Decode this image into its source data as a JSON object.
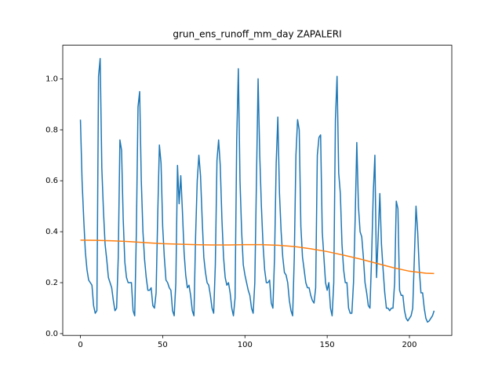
{
  "chart_data": {
    "type": "line",
    "title": "grun_ens_runoff_mm_day ZAPALERI",
    "x": [
      0,
      1,
      2,
      3,
      4,
      5,
      6,
      7,
      8,
      9,
      10,
      11,
      12,
      13,
      14,
      15,
      16,
      17,
      18,
      19,
      20,
      21,
      22,
      23,
      24,
      25,
      26,
      27,
      28,
      29,
      30,
      31,
      32,
      33,
      34,
      35,
      36,
      37,
      38,
      39,
      40,
      41,
      42,
      43,
      44,
      45,
      46,
      47,
      48,
      49,
      50,
      51,
      52,
      53,
      54,
      55,
      56,
      57,
      58,
      59,
      60,
      61,
      62,
      63,
      64,
      65,
      66,
      67,
      68,
      69,
      70,
      71,
      72,
      73,
      74,
      75,
      76,
      77,
      78,
      79,
      80,
      81,
      82,
      83,
      84,
      85,
      86,
      87,
      88,
      89,
      90,
      91,
      92,
      93,
      94,
      95,
      96,
      97,
      98,
      99,
      100,
      101,
      102,
      103,
      104,
      105,
      106,
      107,
      108,
      109,
      110,
      111,
      112,
      113,
      114,
      115,
      116,
      117,
      118,
      119,
      120,
      121,
      122,
      123,
      124,
      125,
      126,
      127,
      128,
      129,
      130,
      131,
      132,
      133,
      134,
      135,
      136,
      137,
      138,
      139,
      140,
      141,
      142,
      143,
      144,
      145,
      146,
      147,
      148,
      149,
      150,
      151,
      152,
      153,
      154,
      155,
      156,
      157,
      158,
      159,
      160,
      161,
      162,
      163,
      164,
      165,
      166,
      167,
      168,
      169,
      170,
      171,
      172,
      173,
      174,
      175,
      176,
      177,
      178,
      179,
      180,
      181,
      182,
      183,
      184,
      185,
      186,
      187,
      188,
      189,
      190,
      191,
      192,
      193,
      194,
      195,
      196,
      197,
      198,
      199,
      200,
      201,
      202,
      203,
      204,
      205,
      206,
      207,
      208,
      209,
      210,
      211,
      212,
      213,
      214,
      215
    ],
    "series": [
      {
        "color": "#1f77b4",
        "values": [
          0.84,
          0.6,
          0.45,
          0.32,
          0.25,
          0.21,
          0.2,
          0.19,
          0.11,
          0.08,
          0.09,
          1.01,
          1.08,
          0.65,
          0.48,
          0.35,
          0.29,
          0.22,
          0.2,
          0.18,
          0.13,
          0.09,
          0.1,
          0.3,
          0.76,
          0.72,
          0.45,
          0.28,
          0.22,
          0.2,
          0.2,
          0.2,
          0.09,
          0.07,
          0.4,
          0.89,
          0.95,
          0.6,
          0.4,
          0.29,
          0.22,
          0.17,
          0.17,
          0.18,
          0.11,
          0.1,
          0.16,
          0.47,
          0.74,
          0.67,
          0.42,
          0.3,
          0.21,
          0.2,
          0.18,
          0.17,
          0.09,
          0.07,
          0.2,
          0.66,
          0.51,
          0.62,
          0.48,
          0.32,
          0.23,
          0.18,
          0.19,
          0.15,
          0.09,
          0.07,
          0.38,
          0.6,
          0.7,
          0.62,
          0.45,
          0.3,
          0.24,
          0.2,
          0.19,
          0.15,
          0.1,
          0.08,
          0.27,
          0.68,
          0.76,
          0.66,
          0.45,
          0.3,
          0.22,
          0.19,
          0.2,
          0.16,
          0.1,
          0.07,
          0.14,
          0.76,
          1.04,
          0.6,
          0.4,
          0.27,
          0.23,
          0.2,
          0.17,
          0.15,
          0.1,
          0.08,
          0.2,
          0.6,
          1.0,
          0.7,
          0.5,
          0.35,
          0.25,
          0.2,
          0.2,
          0.21,
          0.12,
          0.1,
          0.3,
          0.67,
          0.85,
          0.55,
          0.4,
          0.3,
          0.24,
          0.23,
          0.2,
          0.13,
          0.09,
          0.07,
          0.3,
          0.7,
          0.84,
          0.8,
          0.42,
          0.3,
          0.25,
          0.2,
          0.18,
          0.18,
          0.15,
          0.13,
          0.12,
          0.18,
          0.7,
          0.77,
          0.78,
          0.4,
          0.3,
          0.2,
          0.17,
          0.2,
          0.1,
          0.07,
          0.2,
          0.84,
          1.01,
          0.63,
          0.55,
          0.35,
          0.25,
          0.2,
          0.2,
          0.1,
          0.08,
          0.08,
          0.2,
          0.45,
          0.75,
          0.5,
          0.4,
          0.38,
          0.3,
          0.2,
          0.16,
          0.11,
          0.1,
          0.3,
          0.55,
          0.7,
          0.22,
          0.38,
          0.55,
          0.35,
          0.25,
          0.16,
          0.1,
          0.1,
          0.09,
          0.1,
          0.1,
          0.2,
          0.52,
          0.49,
          0.17,
          0.15,
          0.15,
          0.09,
          0.06,
          0.05,
          0.06,
          0.07,
          0.1,
          0.3,
          0.5,
          0.4,
          0.25,
          0.16,
          0.16,
          0.1,
          0.06,
          0.045,
          0.05,
          0.06,
          0.07,
          0.09
        ]
      },
      {
        "color": "#ff7f0e",
        "x": [
          0,
          10,
          20,
          30,
          40,
          50,
          60,
          70,
          80,
          90,
          100,
          110,
          120,
          130,
          140,
          150,
          160,
          170,
          180,
          190,
          200,
          210,
          215
        ],
        "values": [
          0.367,
          0.366,
          0.364,
          0.361,
          0.357,
          0.353,
          0.351,
          0.349,
          0.348,
          0.348,
          0.349,
          0.349,
          0.347,
          0.342,
          0.333,
          0.322,
          0.308,
          0.293,
          0.276,
          0.259,
          0.245,
          0.237,
          0.236
        ]
      }
    ],
    "xlim": [
      -10.75,
      225.75
    ],
    "ylim": [
      -0.007,
      1.132
    ],
    "xticks": [
      0,
      50,
      100,
      150,
      200
    ],
    "yticks": [
      {
        "value": 0,
        "label": "0.0"
      },
      {
        "value": 0.2,
        "label": "0.2"
      },
      {
        "value": 0.4,
        "label": "0.4"
      },
      {
        "value": 0.6,
        "label": "0.6"
      },
      {
        "value": 0.8,
        "label": "0.8"
      },
      {
        "value": 1,
        "label": "1.0"
      }
    ]
  }
}
